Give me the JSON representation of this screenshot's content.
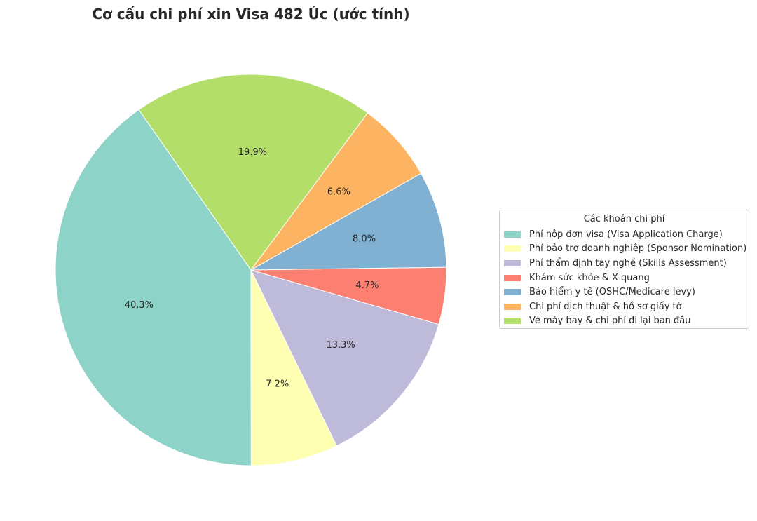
{
  "chart_data": {
    "type": "pie",
    "title": "Cơ cấu chi phí xin Visa 482 Úc (ước tính)",
    "legend_title": "Các khoản chi phí",
    "legend_position": "right",
    "start_angle_deg": 125,
    "direction": "counterclockwise",
    "slices": [
      {
        "label": "Phí nộp đơn visa (Visa Application Charge)",
        "value": 40.3,
        "pct_label": "40.3%",
        "color": "#8dd3c7"
      },
      {
        "label": "Phí bảo trợ doanh nghiệp (Sponsor Nomination)",
        "value": 7.2,
        "pct_label": "7.2%",
        "color": "#ffffb3"
      },
      {
        "label": "Phí thẩm định tay nghề (Skills Assessment)",
        "value": 13.3,
        "pct_label": "13.3%",
        "color": "#bebada"
      },
      {
        "label": "Khám sức khỏe & X-quang",
        "value": 4.7,
        "pct_label": "4.7%",
        "color": "#fb8072"
      },
      {
        "label": "Bảo hiểm y tế (OSHC/Medicare levy)",
        "value": 8.0,
        "pct_label": "8.0%",
        "color": "#80b1d3"
      },
      {
        "label": "Chi phí dịch thuật & hồ sơ giấy tờ",
        "value": 6.6,
        "pct_label": "6.6%",
        "color": "#fdb462"
      },
      {
        "label": "Vé máy bay & chi phí đi lại ban đầu",
        "value": 19.9,
        "pct_label": "19.9%",
        "color": "#b3de69"
      }
    ]
  }
}
